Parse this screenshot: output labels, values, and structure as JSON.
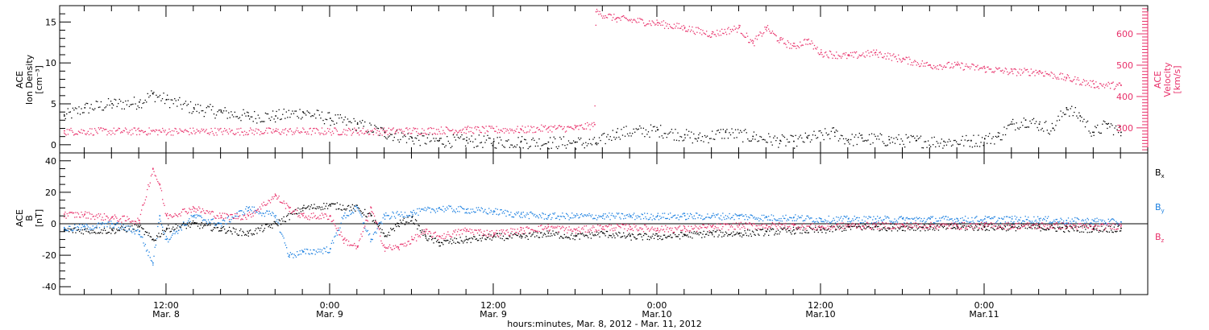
{
  "colors": {
    "black": "#000000",
    "blue": "#1a7fe0",
    "pink": "#e8306a",
    "bg": "#ffffff"
  },
  "chart_data": [
    {
      "id": "plasma",
      "type": "scatter",
      "left_axis": {
        "label_lines": [
          "ACE",
          "Ion Density",
          "[cm⁻³]"
        ],
        "ylim": [
          -1,
          17
        ],
        "ticks": [
          0,
          5,
          10,
          15
        ],
        "tick_labels": [
          "0",
          "5",
          "10",
          "15"
        ]
      },
      "right_axis": {
        "label_lines": [
          "ACE",
          "Velocity",
          "[km/s]"
        ],
        "ylim": [
          220,
          690
        ],
        "ticks": [
          300,
          400,
          500,
          600
        ],
        "tick_labels": [
          "300",
          "400",
          "500",
          "600"
        ]
      },
      "x_unit": "hours since Mar. 8 00:00",
      "xlim": [
        4.2,
        84
      ],
      "series": [
        {
          "color": "black",
          "axis": "left",
          "x": [
            4.5,
            6,
            8,
            10,
            11,
            12,
            14,
            16,
            18,
            20,
            22,
            24,
            26,
            28,
            30,
            32,
            34,
            36,
            38,
            40,
            42,
            43.5,
            45,
            48,
            50,
            51,
            53,
            55,
            57,
            58,
            59,
            61,
            62,
            63,
            65,
            67,
            69,
            71,
            72,
            73,
            74,
            75,
            76,
            77,
            78,
            79,
            80,
            81,
            82
          ],
          "y": [
            3.5,
            4.5,
            5.0,
            5.2,
            6.2,
            5.5,
            4.5,
            4.0,
            3.5,
            3.5,
            4.0,
            3.2,
            2.5,
            1.5,
            0.8,
            0.5,
            0.5,
            0.4,
            0.4,
            0.3,
            0.3,
            0.2,
            1.5,
            1.8,
            1.2,
            0.8,
            1.5,
            1.0,
            0.5,
            0.4,
            0.8,
            1.5,
            0.6,
            0.8,
            0.6,
            0.5,
            0.4,
            0.5,
            0.7,
            1.0,
            2.5,
            3.0,
            2.5,
            2.0,
            4.5,
            3.5,
            1.5,
            2.5,
            1.5
          ]
        },
        {
          "color": "pink",
          "axis": "right",
          "x": [
            4.5,
            10,
            20,
            28,
            34,
            38,
            40,
            42,
            43.4,
            43.5,
            45,
            48,
            50,
            52,
            54,
            55,
            56,
            57,
            58,
            59,
            60,
            62,
            64,
            66,
            68,
            70,
            72,
            74,
            76,
            78,
            80,
            82
          ],
          "y": [
            290,
            290,
            290,
            290,
            295,
            295,
            300,
            300,
            310,
            670,
            650,
            635,
            620,
            600,
            620,
            570,
            620,
            580,
            560,
            580,
            540,
            530,
            540,
            520,
            500,
            500,
            490,
            480,
            480,
            460,
            440,
            435
          ]
        }
      ]
    },
    {
      "id": "mag",
      "type": "scatter",
      "left_axis": {
        "label_lines": [
          "ACE",
          "B",
          "[nT]"
        ],
        "ylim": [
          -45,
          45
        ],
        "ticks": [
          -40,
          -20,
          0,
          20,
          40
        ],
        "tick_labels": [
          "-40",
          "-20",
          "0",
          "20",
          "40"
        ]
      },
      "x_unit": "hours since Mar. 8 00:00",
      "xlim": [
        4.2,
        84
      ],
      "zero_line": true,
      "legend": {
        "placement": "right",
        "entries": [
          {
            "label": "B",
            "sub": "x",
            "color": "black"
          },
          {
            "label": "B",
            "sub": "y",
            "color": "blue"
          },
          {
            "label": "B",
            "sub": "z",
            "color": "pink"
          }
        ]
      },
      "series": [
        {
          "name": "Bx",
          "color": "black",
          "x": [
            4.5,
            8,
            10,
            11,
            12,
            14,
            16,
            18,
            20,
            22,
            24,
            26,
            27,
            28,
            29,
            30,
            31,
            32,
            34,
            36,
            38,
            40,
            42,
            44,
            46,
            48,
            50,
            52,
            54,
            56,
            58,
            60,
            62,
            64,
            66,
            68,
            70,
            72,
            74,
            76,
            78,
            80,
            82
          ],
          "y": [
            -4,
            -4,
            -2,
            -10,
            -3,
            0,
            -3,
            -6,
            0,
            10,
            12,
            10,
            5,
            -8,
            0,
            4,
            -8,
            -12,
            -10,
            -8,
            -8,
            -6,
            -8,
            -6,
            -8,
            -8,
            -7,
            -6,
            -6,
            -5,
            -4,
            -4,
            -2,
            -2,
            -2,
            -2,
            -2,
            -2,
            -2,
            -2,
            -3,
            -3,
            -3
          ]
        },
        {
          "name": "By",
          "color": "blue",
          "x": [
            4.5,
            6,
            8,
            10,
            11,
            11.5,
            12,
            14,
            16,
            18,
            20,
            21,
            22,
            24,
            25,
            26,
            27,
            28,
            30,
            32,
            34,
            36,
            38,
            40,
            42,
            44,
            46,
            48,
            50,
            52,
            54,
            56,
            58,
            60,
            62,
            64,
            66,
            68,
            70,
            72,
            74,
            76,
            78,
            80,
            82
          ],
          "y": [
            -3,
            -2,
            0,
            -5,
            -25,
            5,
            -10,
            5,
            0,
            10,
            5,
            -20,
            -18,
            -16,
            5,
            10,
            -10,
            5,
            7,
            10,
            9,
            8,
            6,
            5,
            5,
            5,
            5,
            5,
            5,
            5,
            5,
            4,
            4,
            3,
            3,
            3,
            3,
            3,
            3,
            3,
            3,
            3,
            2,
            2,
            1
          ]
        },
        {
          "name": "Bz",
          "color": "pink",
          "x": [
            4.5,
            6,
            8,
            10,
            11,
            11.5,
            12,
            14,
            16,
            18,
            20,
            21,
            22,
            24,
            25,
            26,
            27,
            28,
            29,
            30,
            31,
            32,
            34,
            36,
            38,
            40,
            42,
            44,
            46,
            48,
            50,
            52,
            54,
            56,
            58,
            60,
            62,
            64,
            66,
            68,
            70,
            72,
            74,
            76,
            78,
            80,
            82
          ],
          "y": [
            6,
            6,
            4,
            2,
            35,
            25,
            5,
            10,
            5,
            5,
            18,
            10,
            5,
            5,
            -10,
            -15,
            10,
            -15,
            -15,
            -10,
            -5,
            -8,
            -4,
            -6,
            -4,
            -2,
            -4,
            -2,
            -2,
            -3,
            -3,
            -2,
            -1,
            -1,
            -1,
            -2,
            -1,
            -1,
            -1,
            -1,
            -1,
            -1,
            -1,
            -1,
            -1,
            -2,
            -1
          ]
        }
      ]
    }
  ],
  "x_axis": {
    "ticks": [
      {
        "hour": 12,
        "time": "12:00",
        "date": "Mar. 8"
      },
      {
        "hour": 24,
        "time": "0:00",
        "date": "Mar. 9"
      },
      {
        "hour": 36,
        "time": "12:00",
        "date": "Mar. 9"
      },
      {
        "hour": 48,
        "time": "0:00",
        "date": "Mar.10"
      },
      {
        "hour": 60,
        "time": "12:00",
        "date": "Mar.10"
      },
      {
        "hour": 72,
        "time": "0:00",
        "date": "Mar.11"
      }
    ],
    "minor_step_hours": 2,
    "title": "hours:minutes, Mar.  8, 2012 - Mar. 11, 2012"
  }
}
